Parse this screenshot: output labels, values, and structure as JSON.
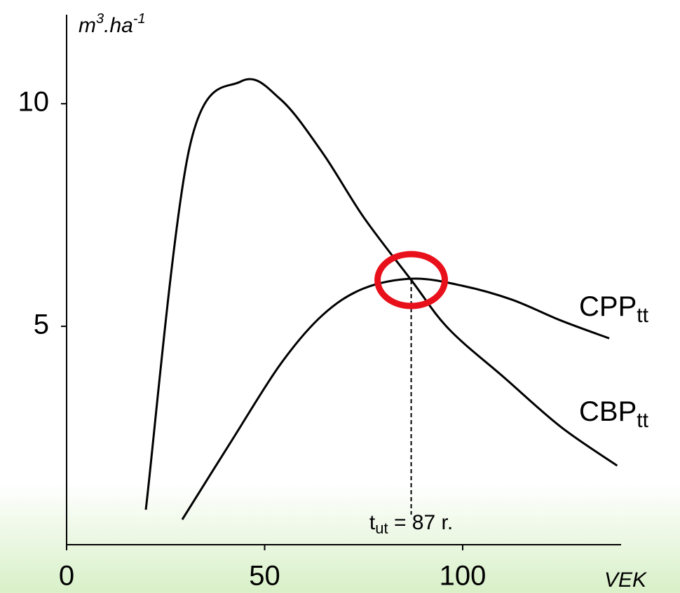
{
  "chart_data": {
    "type": "line",
    "y_label": {
      "base": "m",
      "sup": "3",
      "mid": ".ha",
      "sup2": "-1"
    },
    "x_label": "VEK",
    "xlim": [
      0,
      140
    ],
    "ylim": [
      0,
      12
    ],
    "xticks": [
      0,
      50,
      100
    ],
    "yticks": [
      5,
      10
    ],
    "series": [
      {
        "name": "CBP",
        "name_sub": "tt",
        "color": "#000000",
        "x": [
          20,
          31,
          44,
          54,
          64.6,
          75,
          87,
          96.5,
          110.6,
          124.8,
          139
        ],
        "values": [
          0.88,
          9.0,
          10.5,
          10.1,
          8.9,
          7.45,
          6.04,
          4.94,
          3.84,
          2.74,
          1.87
        ]
      },
      {
        "name": "CPP",
        "name_sub": "tt",
        "color": "#000000",
        "x": [
          29.2,
          41.6,
          54,
          64.6,
          75,
          87.6,
          100,
          112.4,
          124.8,
          137
        ],
        "values": [
          0.66,
          2.42,
          4.15,
          5.25,
          5.85,
          6.07,
          5.91,
          5.6,
          5.13,
          4.73
        ]
      }
    ],
    "annotation": {
      "x": 87,
      "text": "t",
      "sub": "ut",
      "rest": " = 87 r.",
      "color": "#e8101a"
    }
  }
}
